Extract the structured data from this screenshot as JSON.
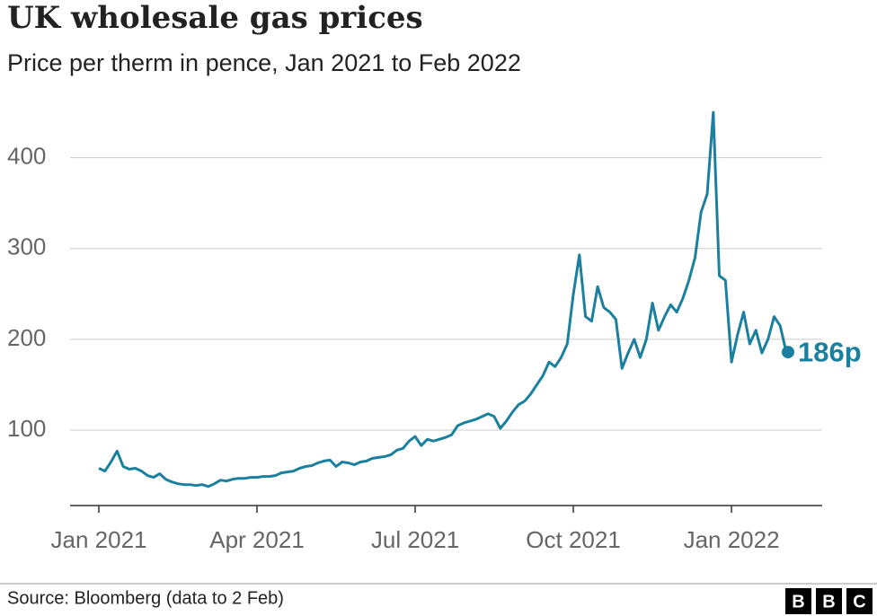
{
  "chart_data": {
    "type": "line",
    "title": "UK wholesale gas prices",
    "subtitle": "Price per therm in pence, Jan 2021 to Feb 2022",
    "categories": [
      "Jan 2021",
      null,
      null,
      null,
      null,
      null,
      null,
      null,
      null,
      null,
      null,
      null,
      null,
      null,
      null,
      null,
      null,
      null,
      null,
      null,
      null,
      null,
      null,
      null,
      null,
      null,
      "Apr 2021",
      null,
      null,
      null,
      null,
      null,
      null,
      null,
      null,
      null,
      null,
      null,
      null,
      null,
      null,
      null,
      null,
      null,
      null,
      null,
      null,
      null,
      null,
      null,
      null,
      null,
      "Jul 2021",
      null,
      null,
      null,
      null,
      null,
      null,
      null,
      null,
      null,
      null,
      null,
      null,
      null,
      null,
      null,
      null,
      null,
      null,
      null,
      null,
      null,
      null,
      null,
      null,
      null,
      "Oct 2021",
      null,
      null,
      null,
      null,
      null,
      null,
      null,
      null,
      null,
      null,
      null,
      null,
      null,
      null,
      null,
      null,
      null,
      null,
      null,
      null,
      null,
      null,
      null,
      null,
      null,
      "Jan 2022",
      null,
      null,
      null,
      null,
      null,
      null,
      null,
      null,
      null
    ],
    "series": [
      {
        "name": "Price per therm",
        "color": "#1b80a0",
        "values": [
          58,
          55,
          65,
          77,
          60,
          57,
          58,
          55,
          50,
          48,
          52,
          46,
          43,
          41,
          40,
          40,
          39,
          40,
          38,
          41,
          45,
          44,
          46,
          47,
          47,
          48,
          48,
          49,
          49,
          50,
          53,
          54,
          55,
          58,
          60,
          61,
          64,
          66,
          67,
          60,
          65,
          64,
          62,
          65,
          66,
          69,
          70,
          71,
          73,
          78,
          80,
          88,
          93,
          83,
          90,
          88,
          90,
          92,
          95,
          105,
          108,
          110,
          112,
          115,
          118,
          115,
          102,
          110,
          120,
          128,
          132,
          140,
          150,
          160,
          175,
          170,
          180,
          195,
          250,
          293,
          225,
          220,
          258,
          235,
          230,
          222,
          168,
          185,
          200,
          180,
          200,
          240,
          210,
          225,
          238,
          230,
          245,
          265,
          290,
          340,
          360,
          450,
          270,
          265,
          175,
          205,
          230,
          195,
          210,
          185,
          200,
          225,
          215,
          186
        ],
        "value_labels": {
          "113": "186p"
        }
      }
    ],
    "ylim": [
      17,
      455
    ],
    "yticks": [
      100,
      200,
      300,
      400
    ],
    "grid": true,
    "footer": {
      "source": "Source: Bloomberg (data to 2 Feb)",
      "logo": [
        "B",
        "B",
        "C"
      ]
    }
  }
}
